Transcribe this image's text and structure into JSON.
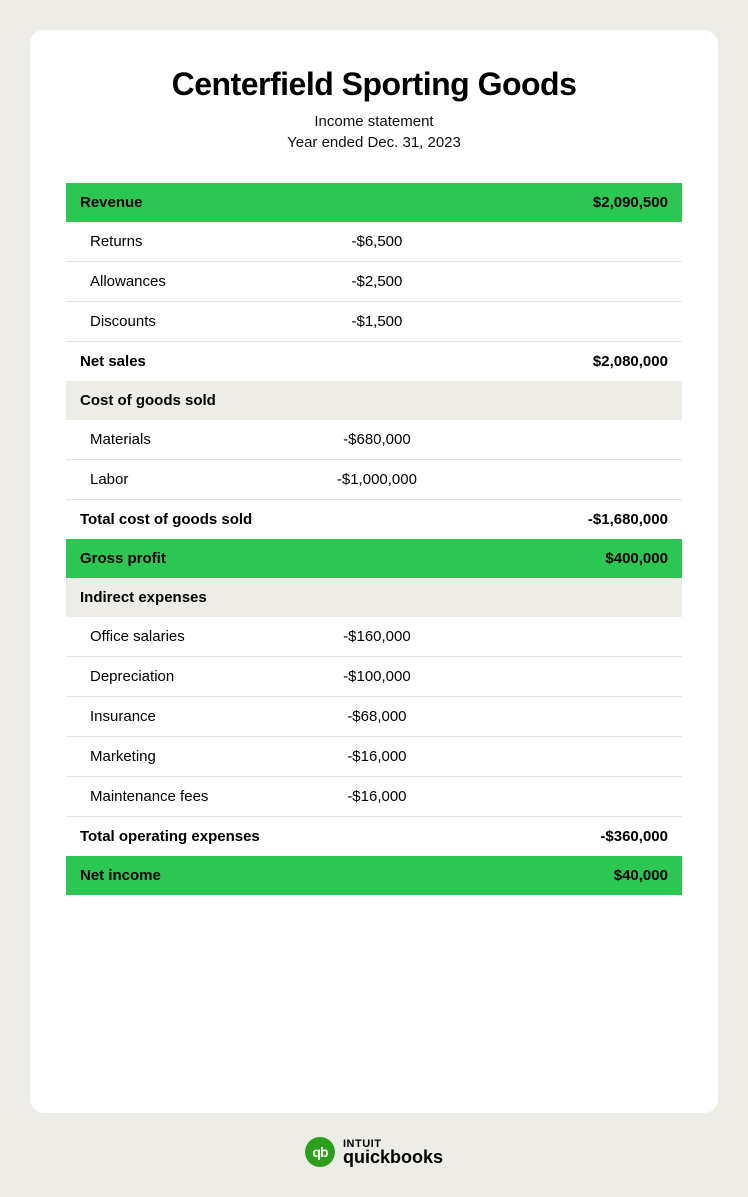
{
  "header": {
    "company": "Centerfield Sporting Goods",
    "report_type": "Income statement",
    "period": "Year ended Dec. 31, 2023"
  },
  "colors": {
    "page_bg": "#eeece6",
    "card_bg": "#ffffff",
    "highlight_green": "#2CC753",
    "section_gray": "#eeece6",
    "text": "#000000",
    "border": "#e6e3dc",
    "qb_green": "#2CA01C"
  },
  "rows": [
    {
      "kind": "green",
      "label": "Revenue",
      "mid": "",
      "right": "$2,090,500"
    },
    {
      "kind": "item",
      "label": "Returns",
      "mid": "-$6,500",
      "right": ""
    },
    {
      "kind": "item",
      "label": "Allowances",
      "mid": "-$2,500",
      "right": ""
    },
    {
      "kind": "item",
      "label": "Discounts",
      "mid": "-$1,500",
      "right": ""
    },
    {
      "kind": "bold",
      "label": "Net sales",
      "mid": "",
      "right": "$2,080,000"
    },
    {
      "kind": "gray",
      "label": "Cost of goods sold",
      "mid": "",
      "right": ""
    },
    {
      "kind": "item",
      "label": "Materials",
      "mid": "-$680,000",
      "right": ""
    },
    {
      "kind": "item",
      "label": "Labor",
      "mid": "-$1,000,000",
      "right": ""
    },
    {
      "kind": "bold",
      "label": "Total cost of goods sold",
      "mid": "",
      "right": "-$1,680,000"
    },
    {
      "kind": "green",
      "label": "Gross profit",
      "mid": "",
      "right": "$400,000"
    },
    {
      "kind": "gray",
      "label": "Indirect expenses",
      "mid": "",
      "right": ""
    },
    {
      "kind": "item",
      "label": "Office salaries",
      "mid": "-$160,000",
      "right": ""
    },
    {
      "kind": "item",
      "label": "Depreciation",
      "mid": "-$100,000",
      "right": ""
    },
    {
      "kind": "item",
      "label": "Insurance",
      "mid": "-$68,000",
      "right": ""
    },
    {
      "kind": "item",
      "label": "Marketing",
      "mid": "-$16,000",
      "right": ""
    },
    {
      "kind": "item",
      "label": "Maintenance fees",
      "mid": "-$16,000",
      "right": ""
    },
    {
      "kind": "bold",
      "label": "Total operating expenses",
      "mid": "",
      "right": "-$360,000"
    },
    {
      "kind": "green",
      "label": "Net income",
      "mid": "",
      "right": "$40,000"
    }
  ],
  "footer": {
    "brand_top": "INTUIT",
    "brand_bottom": "quickbooks",
    "logo_text": "qb"
  }
}
